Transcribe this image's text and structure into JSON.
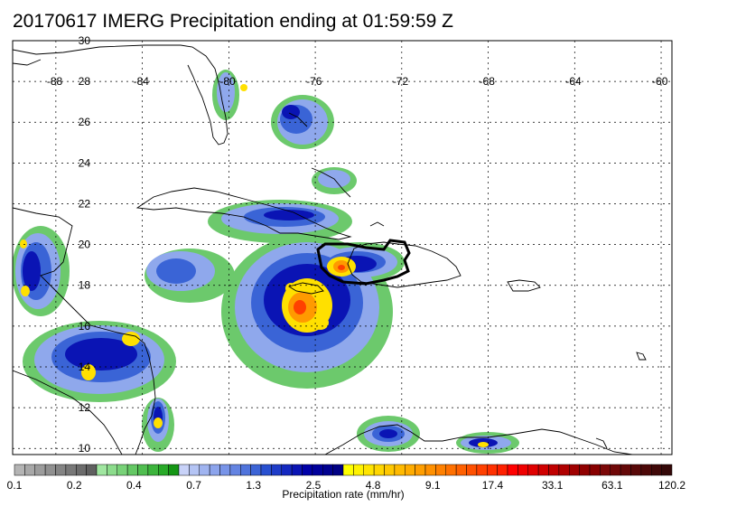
{
  "title": "20170617 IMERG Precipitation ending at 01:59:59 Z",
  "map": {
    "lon_labels": [
      "-88",
      "-84",
      "-80",
      "-76",
      "-72",
      "-68",
      "-64",
      "-60"
    ],
    "lon_values": [
      -88,
      -84,
      -80,
      -76,
      -72,
      -68,
      -64,
      -60
    ],
    "lat_labels": [
      "30",
      "28",
      "26",
      "24",
      "22",
      "20",
      "18",
      "16",
      "14",
      "12",
      "10"
    ],
    "lat_values": [
      30,
      28,
      26,
      24,
      22,
      20,
      18,
      16,
      14,
      12,
      10
    ],
    "lon_range": [
      -90,
      -59.5
    ],
    "lat_range": [
      9.7,
      30
    ],
    "grid": true
  },
  "colorbar": {
    "label": "Precipitation rate (mm/hr)",
    "tick_labels": [
      "0.1",
      "0.2",
      "0.4",
      "0.7",
      "1.3",
      "2.5",
      "4.8",
      "9.1",
      "17.4",
      "33.1",
      "63.1",
      "120.2"
    ],
    "colors": [
      "#b4b4b4",
      "#a8a8a8",
      "#9c9c9c",
      "#909090",
      "#848484",
      "#787878",
      "#6c6c6c",
      "#606060",
      "#a0e6a0",
      "#8cdc8c",
      "#78d278",
      "#64c864",
      "#50be50",
      "#3cb43c",
      "#28aa28",
      "#149614",
      "#c8d2f8",
      "#b4c4f4",
      "#a0b4f0",
      "#8ca4ec",
      "#7894e8",
      "#6484e2",
      "#5074dc",
      "#3c64d6",
      "#2850d0",
      "#1e3cc8",
      "#1428c0",
      "#0a14b4",
      "#0000a8",
      "#00009c",
      "#000090",
      "#000084",
      "#ffff00",
      "#fff200",
      "#ffe400",
      "#ffd600",
      "#ffc800",
      "#ffba00",
      "#ffac00",
      "#ff9e00",
      "#ff9000",
      "#ff8000",
      "#ff7000",
      "#ff6000",
      "#ff5000",
      "#ff4000",
      "#ff3000",
      "#ff2000",
      "#ff0000",
      "#f00000",
      "#e00000",
      "#d00000",
      "#c00000",
      "#b00000",
      "#a00000",
      "#900000",
      "#880000",
      "#7c0808",
      "#700808",
      "#640808",
      "#580808",
      "#4c0808",
      "#400808",
      "#340808"
    ]
  }
}
